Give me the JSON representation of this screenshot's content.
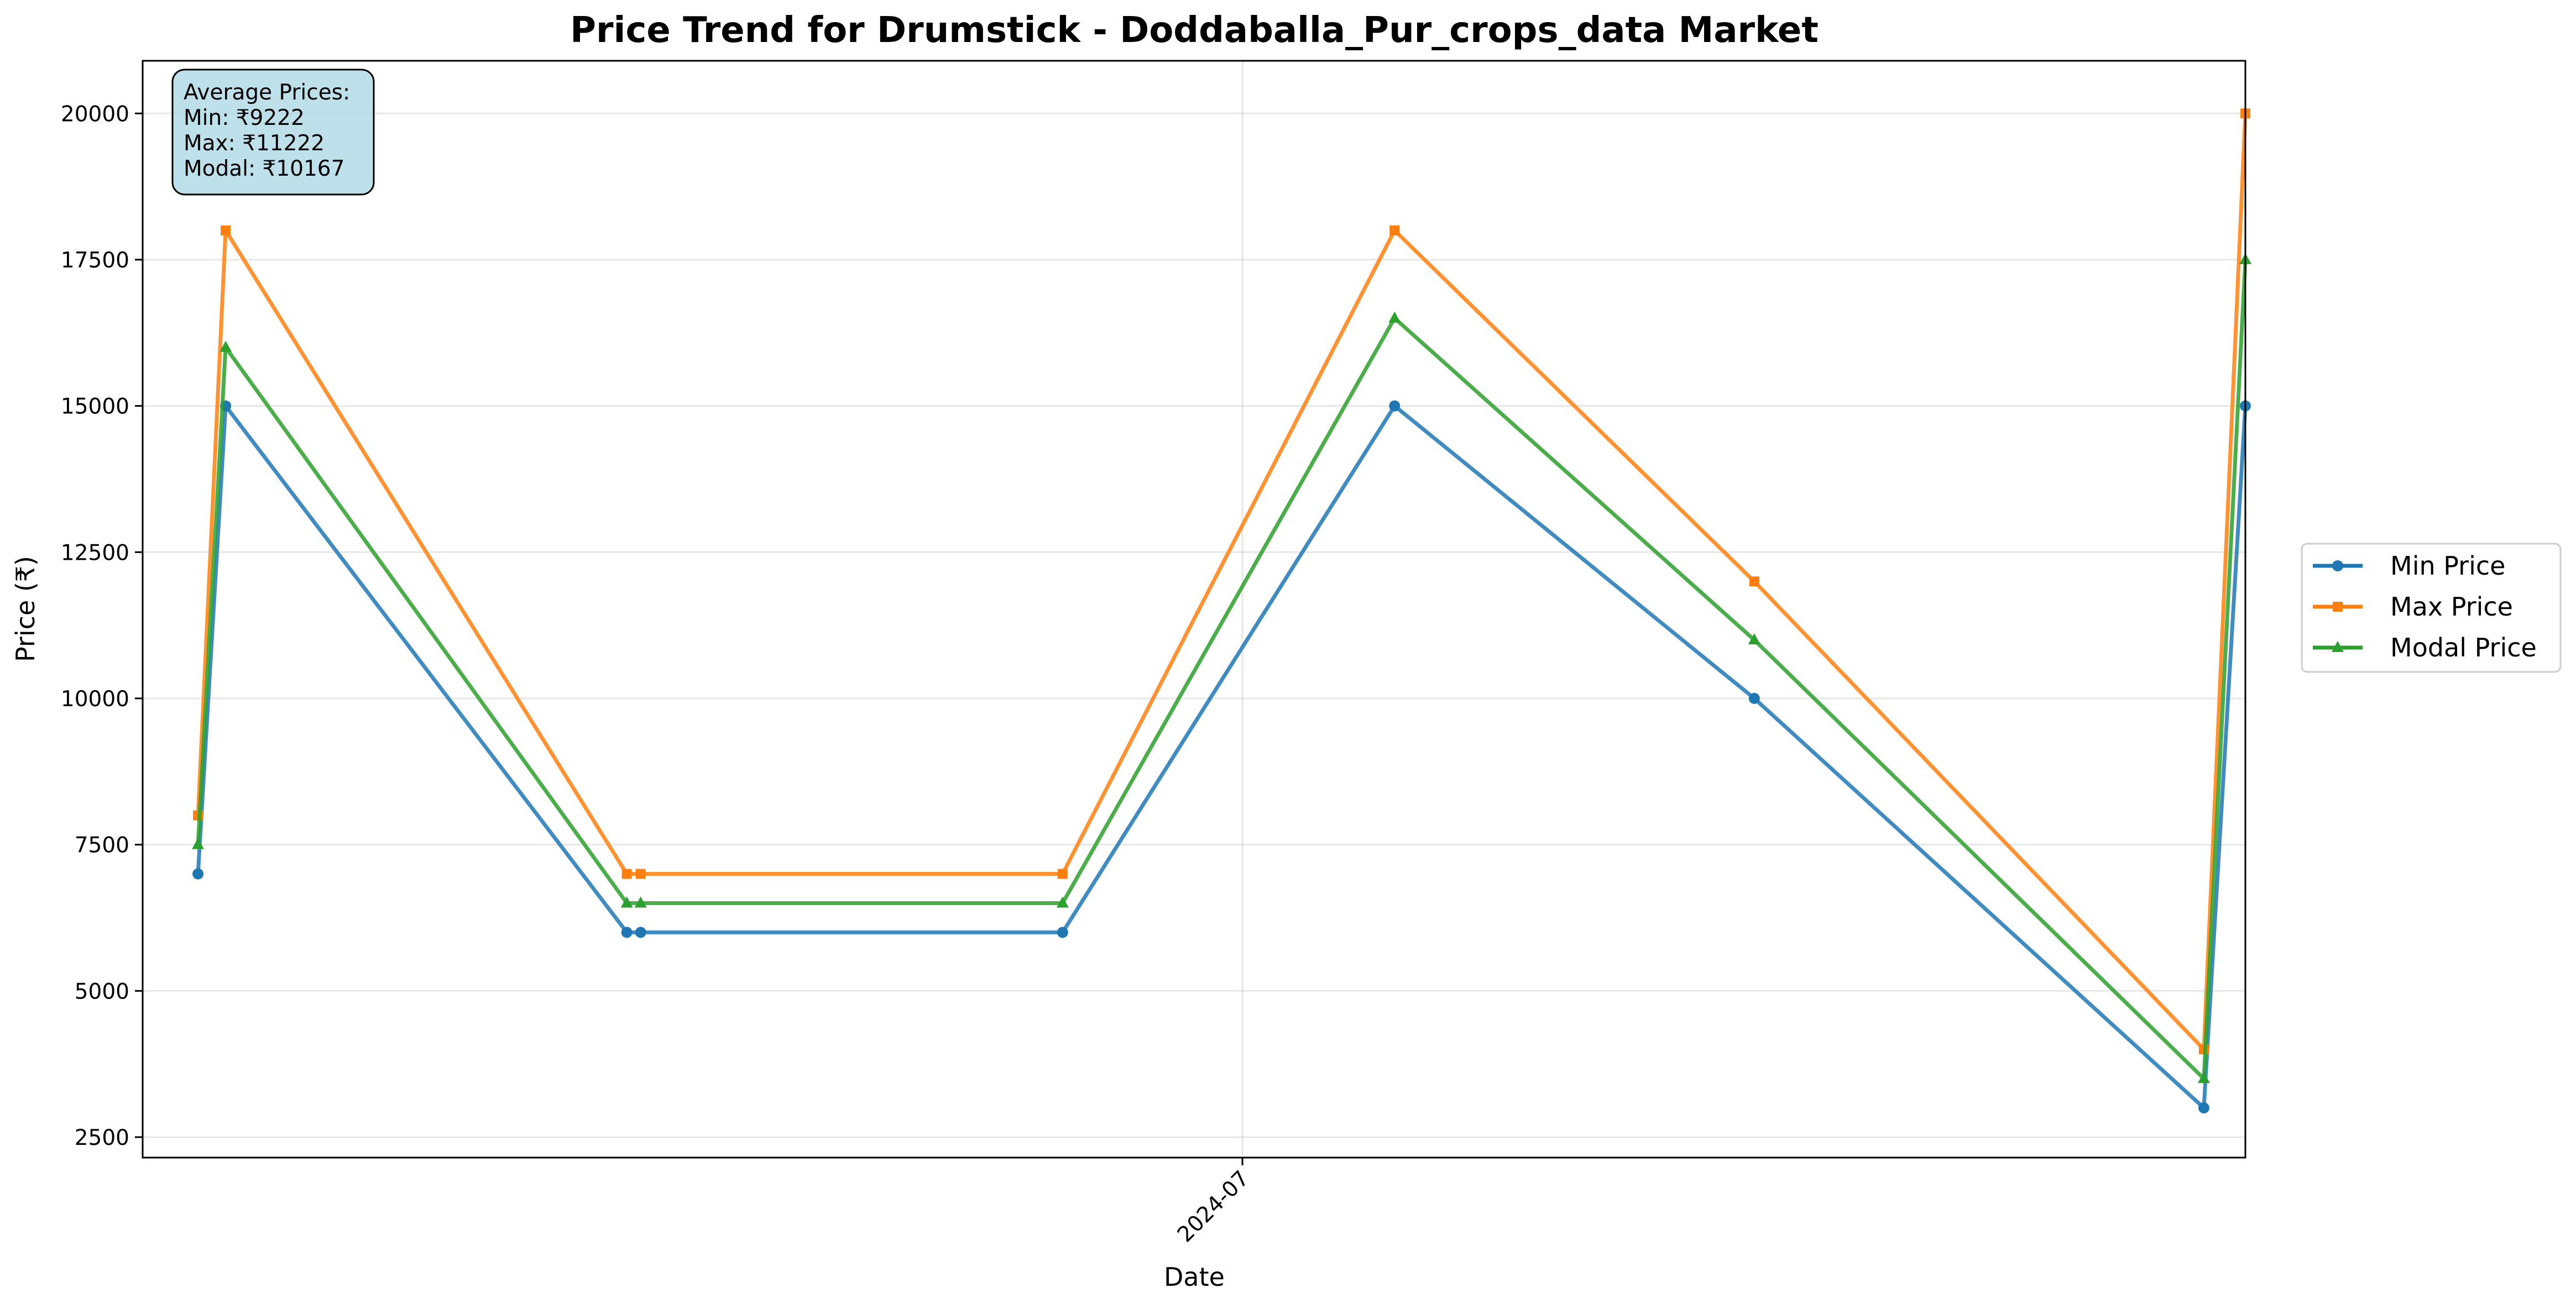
{
  "chart_data": {
    "type": "line",
    "title": "Price Trend for Drumstick - Doddaballa_Pur_crops_data Market",
    "xlabel": "Date",
    "ylabel": "Price (₹)",
    "x_tick_labels": [
      {
        "date": "2024-07-01",
        "label": "2024-07"
      }
    ],
    "x_range": [
      "2024-01-24",
      "2024-11-23"
    ],
    "ylim": [
      2150,
      20900
    ],
    "y_ticks": [
      2500,
      5000,
      7500,
      10000,
      12500,
      15000,
      17500,
      20000
    ],
    "grid": true,
    "legend_position": "right",
    "x": [
      "2024-02-01",
      "2024-02-05",
      "2024-04-03",
      "2024-04-05",
      "2024-06-05",
      "2024-07-23",
      "2024-09-13",
      "2024-11-17",
      "2024-11-23"
    ],
    "series": [
      {
        "name": "Min Price",
        "color": "#1f77b4",
        "marker": "circle",
        "values": [
          7000,
          15000,
          6000,
          6000,
          6000,
          15000,
          10000,
          3000,
          15000
        ]
      },
      {
        "name": "Max Price",
        "color": "#ff7f0e",
        "marker": "square",
        "values": [
          8000,
          18000,
          7000,
          7000,
          7000,
          18000,
          12000,
          4000,
          20000
        ]
      },
      {
        "name": "Modal Price",
        "color": "#2ca02c",
        "marker": "triangle",
        "values": [
          7500,
          16000,
          6500,
          6500,
          6500,
          16500,
          11000,
          3500,
          17500
        ]
      }
    ],
    "annotation": {
      "lines": [
        "Average Prices:",
        "Min: ₹9222",
        "Max: ₹11222",
        "Modal: ₹10167"
      ],
      "background": "#add8e6"
    }
  }
}
